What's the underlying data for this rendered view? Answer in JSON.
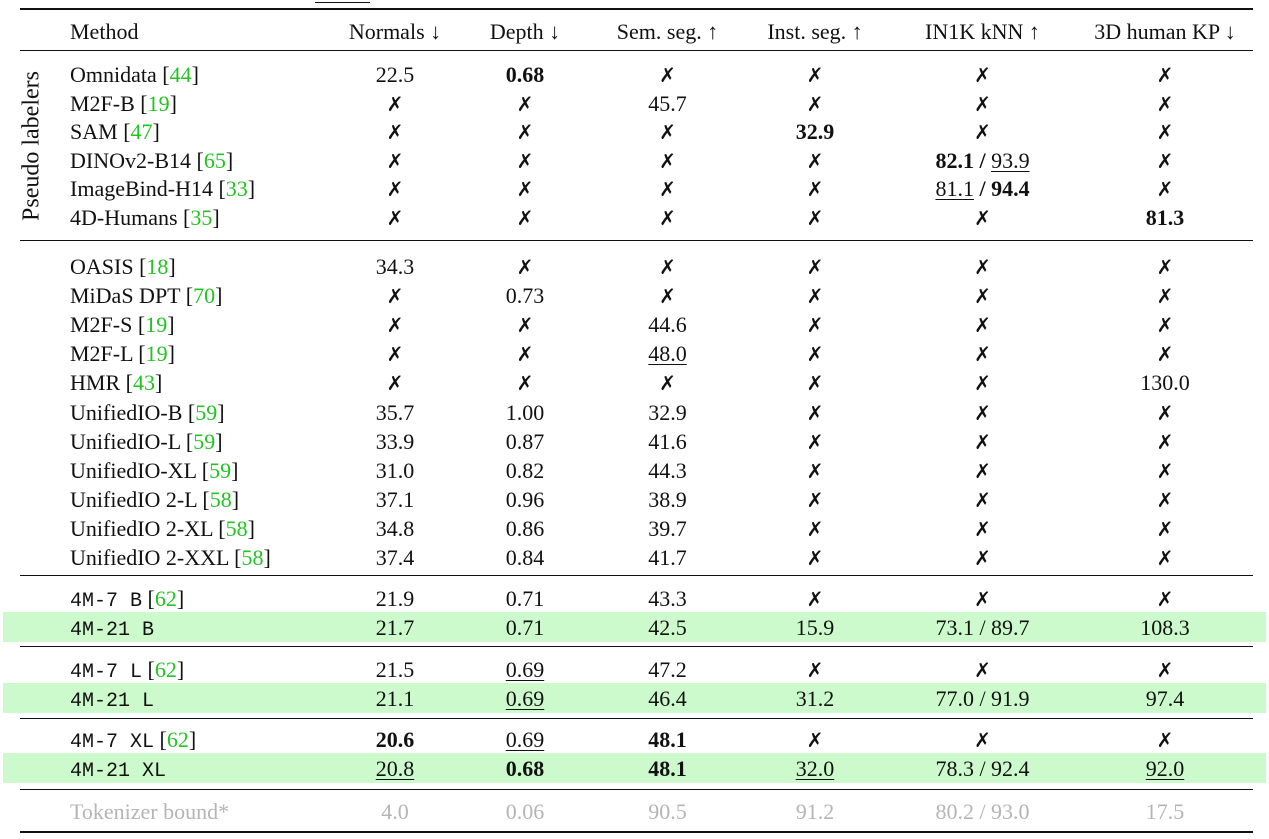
{
  "caption_fragment": "",
  "table": {
    "group_label": "Pseudo labelers",
    "columns": [
      "Method",
      "Normals ↓",
      "Depth ↓",
      "Sem. seg. ↑",
      "Inst. seg. ↑",
      "IN1K kNN ↑",
      "3D human KP ↓"
    ],
    "sections": [
      {
        "name": "pseudo-labelers",
        "rows": [
          {
            "method": "Omnidata",
            "cite": "44",
            "values": [
              "22.5",
              "0.68",
              "✗",
              "✗",
              "✗",
              "✗"
            ],
            "bold": [
              1
            ],
            "underline": []
          },
          {
            "method": "M2F-B",
            "cite": "19",
            "values": [
              "✗",
              "✗",
              "45.7",
              "✗",
              "✗",
              "✗"
            ],
            "bold": [],
            "underline": []
          },
          {
            "method": "SAM",
            "cite": "47",
            "values": [
              "✗",
              "✗",
              "✗",
              "32.9",
              "✗",
              "✗"
            ],
            "bold": [
              3
            ],
            "underline": []
          },
          {
            "method": "DINOv2-B14",
            "cite": "65",
            "values": [
              "✗",
              "✗",
              "✗",
              "✗",
              {
                "a": "82.1",
                "b": "93.9",
                "a_style": "bold",
                "b_style": "underline"
              },
              "✗"
            ]
          },
          {
            "method": "ImageBind-H14",
            "cite": "33",
            "values": [
              "✗",
              "✗",
              "✗",
              "✗",
              {
                "a": "81.1",
                "b": "94.4",
                "a_style": "underline",
                "b_style": "bold"
              },
              "✗"
            ]
          },
          {
            "method": "4D-Humans",
            "cite": "35",
            "values": [
              "✗",
              "✗",
              "✗",
              "✗",
              "✗",
              "81.3"
            ],
            "bold": [
              5
            ],
            "underline": []
          }
        ]
      },
      {
        "name": "baselines",
        "rows": [
          {
            "method": "OASIS",
            "cite": "18",
            "values": [
              "34.3",
              "✗",
              "✗",
              "✗",
              "✗",
              "✗"
            ]
          },
          {
            "method": "MiDaS DPT",
            "cite": "70",
            "values": [
              "✗",
              "0.73",
              "✗",
              "✗",
              "✗",
              "✗"
            ]
          },
          {
            "method": "M2F-S",
            "cite": "19",
            "values": [
              "✗",
              "✗",
              "44.6",
              "✗",
              "✗",
              "✗"
            ]
          },
          {
            "method": "M2F-L",
            "cite": "19",
            "values": [
              "✗",
              "✗",
              "48.0",
              "✗",
              "✗",
              "✗"
            ],
            "underline": [
              2
            ]
          },
          {
            "method": "HMR",
            "cite": "43",
            "values": [
              "✗",
              "✗",
              "✗",
              "✗",
              "✗",
              "130.0"
            ]
          },
          {
            "method": "UnifiedIO-B",
            "cite": "59",
            "values": [
              "35.7",
              "1.00",
              "32.9",
              "✗",
              "✗",
              "✗"
            ]
          },
          {
            "method": "UnifiedIO-L",
            "cite": "59",
            "values": [
              "33.9",
              "0.87",
              "41.6",
              "✗",
              "✗",
              "✗"
            ]
          },
          {
            "method": "UnifiedIO-XL",
            "cite": "59",
            "values": [
              "31.0",
              "0.82",
              "44.3",
              "✗",
              "✗",
              "✗"
            ]
          },
          {
            "method": "UnifiedIO 2-L",
            "cite": "58",
            "values": [
              "37.1",
              "0.96",
              "38.9",
              "✗",
              "✗",
              "✗"
            ]
          },
          {
            "method": "UnifiedIO 2-XL",
            "cite": "58",
            "values": [
              "34.8",
              "0.86",
              "39.7",
              "✗",
              "✗",
              "✗"
            ]
          },
          {
            "method": "UnifiedIO 2-XXL",
            "cite": "58",
            "values": [
              "37.4",
              "0.84",
              "41.7",
              "✗",
              "✗",
              "✗"
            ]
          }
        ]
      },
      {
        "name": "4m-base",
        "rows": [
          {
            "method": "4M-7 B",
            "cite": "62",
            "mono": true,
            "values": [
              "21.9",
              "0.71",
              "43.3",
              "✗",
              "✗",
              "✗"
            ]
          },
          {
            "method": "4M-21 B",
            "mono": true,
            "highlight": true,
            "values": [
              "21.7",
              "0.71",
              "42.5",
              "15.9",
              "73.1 / 89.7",
              "108.3"
            ]
          }
        ]
      },
      {
        "name": "4m-large",
        "rows": [
          {
            "method": "4M-7 L",
            "cite": "62",
            "mono": true,
            "values": [
              "21.5",
              "0.69",
              "47.2",
              "✗",
              "✗",
              "✗"
            ],
            "underline": [
              1
            ]
          },
          {
            "method": "4M-21 L",
            "mono": true,
            "highlight": true,
            "values": [
              "21.1",
              "0.69",
              "46.4",
              "31.2",
              "77.0 / 91.9",
              "97.4"
            ],
            "underline": [
              1
            ]
          }
        ]
      },
      {
        "name": "4m-xlarge",
        "rows": [
          {
            "method": "4M-7 XL",
            "cite": "62",
            "mono": true,
            "values": [
              "20.6",
              "0.69",
              "48.1",
              "✗",
              "✗",
              "✗"
            ],
            "bold": [
              0,
              2
            ],
            "underline": [
              1
            ]
          },
          {
            "method": "4M-21 XL",
            "mono": true,
            "highlight": true,
            "values": [
              "20.8",
              "0.68",
              "48.1",
              "32.0",
              "78.3 / 92.4",
              "92.0"
            ],
            "bold": [
              1,
              2
            ],
            "underline": [
              0,
              3,
              5
            ]
          }
        ]
      },
      {
        "name": "bound",
        "rows": [
          {
            "method": "Tokenizer bound*",
            "gray": true,
            "values": [
              "4.0",
              "0.06",
              "90.5",
              "91.2",
              "80.2 / 93.0",
              "17.5"
            ]
          }
        ]
      }
    ]
  },
  "colors": {
    "citation": "#22c322",
    "highlight": "#ccfacc",
    "muted": "#b5b5b5",
    "rule": "#111111"
  }
}
